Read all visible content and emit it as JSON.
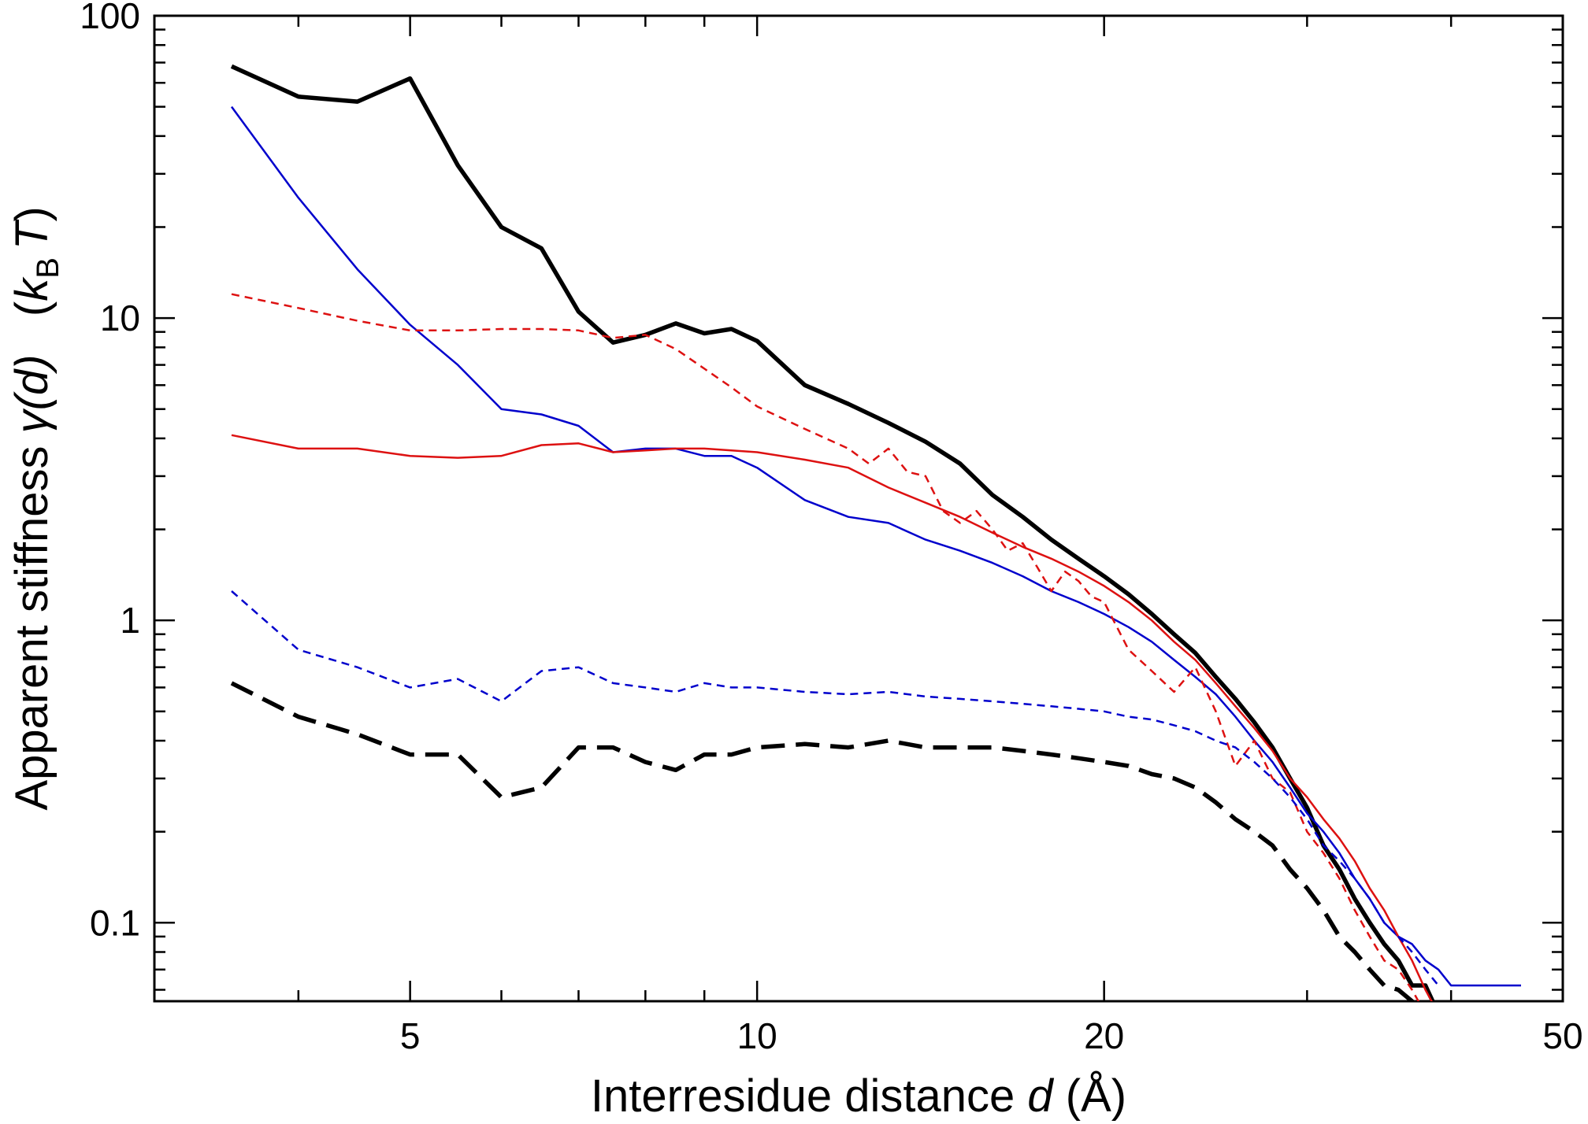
{
  "chart_data": {
    "type": "line",
    "xlabel": {
      "prefix": "Interresidue distance ",
      "var": "d",
      "suffix": "  (Å)"
    },
    "ylabel": {
      "prefix": "Apparent stiffness ",
      "gamma": "γ",
      "arg": "(d)",
      "units_open": "   (",
      "k": "k",
      "sub": "B",
      "T": "T",
      "units_close": ")"
    },
    "x_scale": "log",
    "y_scale": "log",
    "xlim": [
      3.0,
      50
    ],
    "ylim": [
      0.055,
      100
    ],
    "xticks": [
      5,
      10,
      20,
      50
    ],
    "xtick_labels": [
      "5",
      "10",
      "20",
      "50"
    ],
    "yticks": [
      0.1,
      1,
      10,
      100
    ],
    "ytick_labels": [
      "0.1",
      "1",
      "10",
      "100"
    ],
    "grid": false,
    "legend": "none",
    "series": [
      {
        "color": "#000000",
        "style": "solid-thick",
        "x": [
          3.5,
          4.0,
          4.5,
          5.0,
          5.5,
          6.0,
          6.5,
          7.0,
          7.5,
          8.0,
          8.5,
          9.0,
          9.5,
          10.0,
          11.0,
          12.0,
          13.0,
          14.0,
          15.0,
          16.0,
          17.0,
          18.0,
          19.0,
          20.0,
          21.0,
          22.0,
          23.0,
          24.0,
          25.0,
          26.0,
          27.0,
          28.0,
          29.0,
          30.0,
          31.0,
          32.0,
          33.0,
          34.0,
          35.0,
          36.0,
          37.0,
          38.0,
          39.0
        ],
        "y": [
          68,
          54,
          52,
          62,
          32,
          20,
          17,
          10.5,
          8.3,
          8.8,
          9.6,
          8.9,
          9.2,
          8.4,
          6.0,
          5.2,
          4.5,
          3.9,
          3.3,
          2.6,
          2.2,
          1.85,
          1.6,
          1.4,
          1.22,
          1.05,
          0.9,
          0.78,
          0.65,
          0.55,
          0.46,
          0.38,
          0.3,
          0.24,
          0.18,
          0.15,
          0.12,
          0.1,
          0.085,
          0.075,
          0.062,
          0.062,
          0.05
        ]
      },
      {
        "color": "#0000cc",
        "style": "solid",
        "x": [
          3.5,
          4.0,
          4.5,
          5.0,
          5.5,
          6.0,
          6.5,
          7.0,
          7.5,
          8.0,
          8.5,
          9.0,
          9.5,
          10.0,
          11.0,
          12.0,
          13.0,
          14.0,
          15.0,
          16.0,
          17.0,
          18.0,
          19.0,
          20.0,
          21.0,
          22.0,
          23.0,
          24.0,
          25.0,
          26.0,
          27.0,
          28.0,
          29.0,
          30.0,
          31.0,
          32.0,
          33.0,
          34.0,
          35.0,
          36.0,
          37.0,
          38.0,
          39.0,
          40.0,
          41.0,
          42.0,
          43.0,
          44.0,
          45.0,
          46.0
        ],
        "y": [
          50,
          25,
          14.5,
          9.5,
          7.0,
          5.0,
          4.8,
          4.4,
          3.6,
          3.7,
          3.7,
          3.5,
          3.5,
          3.2,
          2.5,
          2.2,
          2.1,
          1.85,
          1.7,
          1.55,
          1.4,
          1.25,
          1.15,
          1.05,
          0.95,
          0.85,
          0.74,
          0.65,
          0.57,
          0.48,
          0.4,
          0.34,
          0.28,
          0.23,
          0.2,
          0.17,
          0.14,
          0.12,
          0.1,
          0.09,
          0.085,
          0.075,
          0.07,
          0.062,
          0.062,
          0.062,
          0.062,
          0.062,
          0.062,
          0.062
        ]
      },
      {
        "color": "#dd1111",
        "style": "solid",
        "x": [
          3.5,
          4.0,
          4.5,
          5.0,
          5.5,
          6.0,
          6.5,
          7.0,
          7.5,
          8.0,
          8.5,
          9.0,
          9.5,
          10.0,
          11.0,
          12.0,
          13.0,
          14.0,
          15.0,
          16.0,
          17.0,
          18.0,
          19.0,
          20.0,
          21.0,
          22.0,
          23.0,
          24.0,
          25.0,
          26.0,
          27.0,
          28.0,
          29.0,
          30.0,
          31.0,
          32.0,
          33.0,
          34.0,
          35.0,
          36.0,
          37.0,
          38.0,
          39.0,
          40.0
        ],
        "y": [
          4.1,
          3.7,
          3.7,
          3.5,
          3.45,
          3.5,
          3.8,
          3.85,
          3.6,
          3.65,
          3.7,
          3.7,
          3.65,
          3.6,
          3.4,
          3.2,
          2.75,
          2.45,
          2.2,
          1.95,
          1.75,
          1.6,
          1.45,
          1.3,
          1.15,
          1.0,
          0.85,
          0.74,
          0.62,
          0.52,
          0.44,
          0.37,
          0.3,
          0.26,
          0.22,
          0.19,
          0.16,
          0.13,
          0.11,
          0.09,
          0.075,
          0.06,
          0.05,
          0.05
        ]
      },
      {
        "color": "#dd1111",
        "style": "dashed",
        "x": [
          3.5,
          4.0,
          4.5,
          5.0,
          5.5,
          6.0,
          6.5,
          7.0,
          7.5,
          8.0,
          8.5,
          9.0,
          9.5,
          10.0,
          11.0,
          12.0,
          12.5,
          13.0,
          13.5,
          14.0,
          14.5,
          15.0,
          15.5,
          16.0,
          16.5,
          17.0,
          17.5,
          18.0,
          18.5,
          19.0,
          19.5,
          20.0,
          21.0,
          22.0,
          23.0,
          24.0,
          25.0,
          26.0,
          27.0,
          28.0,
          29.0,
          30.0,
          31.0,
          32.0,
          33.0,
          34.0,
          35.0,
          36.0,
          37.0,
          38.0
        ],
        "y": [
          12,
          10.8,
          9.8,
          9.1,
          9.1,
          9.2,
          9.2,
          9.1,
          8.6,
          8.8,
          7.9,
          6.8,
          5.9,
          5.1,
          4.3,
          3.7,
          3.3,
          3.7,
          3.1,
          3.0,
          2.3,
          2.1,
          2.3,
          2.0,
          1.7,
          1.8,
          1.5,
          1.25,
          1.45,
          1.35,
          1.2,
          1.15,
          0.8,
          0.68,
          0.58,
          0.7,
          0.5,
          0.33,
          0.4,
          0.3,
          0.27,
          0.2,
          0.17,
          0.14,
          0.11,
          0.09,
          0.075,
          0.07,
          0.06,
          0.05
        ]
      },
      {
        "color": "#0000cc",
        "style": "dashed",
        "x": [
          3.5,
          4.0,
          4.5,
          5.0,
          5.5,
          6.0,
          6.5,
          7.0,
          7.5,
          8.0,
          8.5,
          9.0,
          9.5,
          10.0,
          11.0,
          12.0,
          13.0,
          14.0,
          15.0,
          16.0,
          17.0,
          18.0,
          19.0,
          20.0,
          21.0,
          22.0,
          23.0,
          24.0,
          25.0,
          26.0,
          27.0,
          28.0,
          29.0,
          30.0,
          31.0,
          32.0,
          33.0,
          34.0,
          35.0,
          36.0,
          37.0,
          38.0,
          39.0
        ],
        "y": [
          1.25,
          0.8,
          0.7,
          0.6,
          0.64,
          0.54,
          0.68,
          0.7,
          0.62,
          0.6,
          0.58,
          0.62,
          0.6,
          0.6,
          0.58,
          0.57,
          0.58,
          0.56,
          0.55,
          0.54,
          0.53,
          0.52,
          0.51,
          0.5,
          0.48,
          0.47,
          0.45,
          0.43,
          0.4,
          0.38,
          0.34,
          0.3,
          0.26,
          0.22,
          0.18,
          0.16,
          0.14,
          0.12,
          0.1,
          0.09,
          0.08,
          0.07,
          0.062
        ]
      },
      {
        "color": "#000000",
        "style": "dashed-thick",
        "x": [
          3.5,
          4.0,
          4.5,
          5.0,
          5.5,
          6.0,
          6.5,
          7.0,
          7.5,
          8.0,
          8.5,
          9.0,
          9.5,
          10.0,
          11.0,
          12.0,
          13.0,
          14.0,
          15.0,
          16.0,
          17.0,
          18.0,
          19.0,
          20.0,
          21.0,
          22.0,
          23.0,
          24.0,
          25.0,
          26.0,
          27.0,
          28.0,
          29.0,
          30.0,
          31.0,
          32.0,
          33.0,
          34.0,
          35.0,
          36.0,
          37.0,
          38.0
        ],
        "y": [
          0.62,
          0.48,
          0.42,
          0.36,
          0.36,
          0.26,
          0.28,
          0.38,
          0.38,
          0.34,
          0.32,
          0.36,
          0.36,
          0.38,
          0.39,
          0.38,
          0.4,
          0.38,
          0.38,
          0.38,
          0.37,
          0.36,
          0.35,
          0.34,
          0.33,
          0.31,
          0.3,
          0.28,
          0.25,
          0.22,
          0.2,
          0.18,
          0.15,
          0.13,
          0.11,
          0.09,
          0.08,
          0.07,
          0.062,
          0.06,
          0.055,
          0.05
        ]
      }
    ]
  }
}
